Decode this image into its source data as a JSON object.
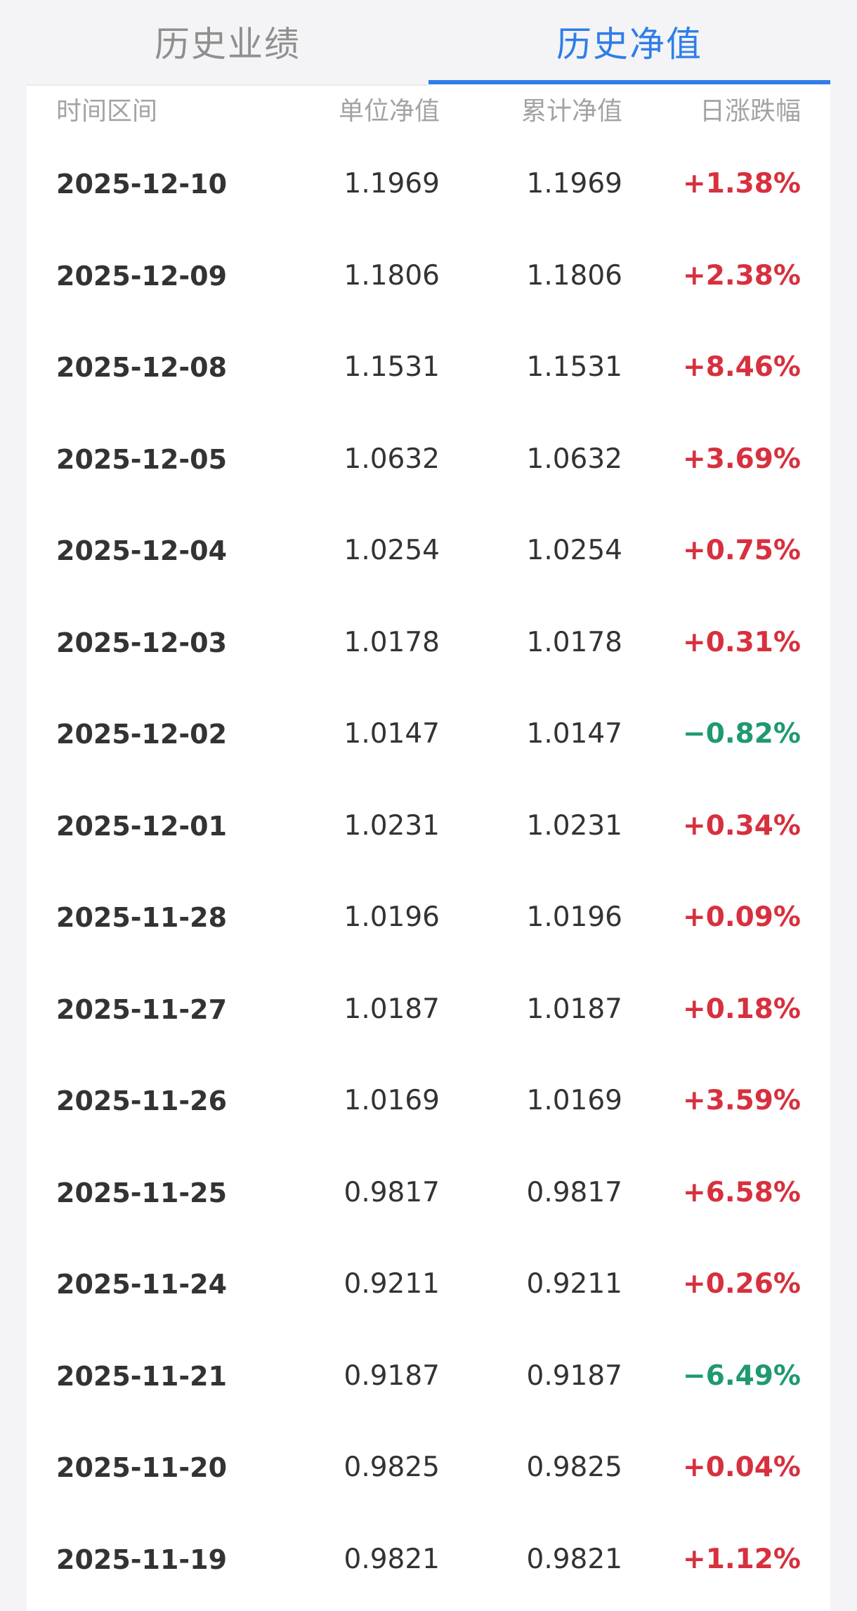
{
  "tabs": [
    {
      "label": "历史业绩",
      "active": false
    },
    {
      "label": "历史净值",
      "active": true
    }
  ],
  "colors": {
    "accent": "#2e7ee8",
    "up": "#d7303e",
    "down": "#1f9a6e",
    "inactive_tab": "#8f8f8f",
    "header_text": "#a3a3a3"
  },
  "table": {
    "headers": {
      "date": "时间区间",
      "unit_nav": "单位净值",
      "cum_nav": "累计净值",
      "daily_change": "日涨跌幅"
    },
    "rows": [
      {
        "date": "2025-12-10",
        "unit_nav": "1.1969",
        "cum_nav": "1.1969",
        "change": "+1.38%",
        "dir": "up"
      },
      {
        "date": "2025-12-09",
        "unit_nav": "1.1806",
        "cum_nav": "1.1806",
        "change": "+2.38%",
        "dir": "up"
      },
      {
        "date": "2025-12-08",
        "unit_nav": "1.1531",
        "cum_nav": "1.1531",
        "change": "+8.46%",
        "dir": "up"
      },
      {
        "date": "2025-12-05",
        "unit_nav": "1.0632",
        "cum_nav": "1.0632",
        "change": "+3.69%",
        "dir": "up"
      },
      {
        "date": "2025-12-04",
        "unit_nav": "1.0254",
        "cum_nav": "1.0254",
        "change": "+0.75%",
        "dir": "up"
      },
      {
        "date": "2025-12-03",
        "unit_nav": "1.0178",
        "cum_nav": "1.0178",
        "change": "+0.31%",
        "dir": "up"
      },
      {
        "date": "2025-12-02",
        "unit_nav": "1.0147",
        "cum_nav": "1.0147",
        "change": "−0.82%",
        "dir": "down"
      },
      {
        "date": "2025-12-01",
        "unit_nav": "1.0231",
        "cum_nav": "1.0231",
        "change": "+0.34%",
        "dir": "up"
      },
      {
        "date": "2025-11-28",
        "unit_nav": "1.0196",
        "cum_nav": "1.0196",
        "change": "+0.09%",
        "dir": "up"
      },
      {
        "date": "2025-11-27",
        "unit_nav": "1.0187",
        "cum_nav": "1.0187",
        "change": "+0.18%",
        "dir": "up"
      },
      {
        "date": "2025-11-26",
        "unit_nav": "1.0169",
        "cum_nav": "1.0169",
        "change": "+3.59%",
        "dir": "up"
      },
      {
        "date": "2025-11-25",
        "unit_nav": "0.9817",
        "cum_nav": "0.9817",
        "change": "+6.58%",
        "dir": "up"
      },
      {
        "date": "2025-11-24",
        "unit_nav": "0.9211",
        "cum_nav": "0.9211",
        "change": "+0.26%",
        "dir": "up"
      },
      {
        "date": "2025-11-21",
        "unit_nav": "0.9187",
        "cum_nav": "0.9187",
        "change": "−6.49%",
        "dir": "down"
      },
      {
        "date": "2025-11-20",
        "unit_nav": "0.9825",
        "cum_nav": "0.9825",
        "change": "+0.04%",
        "dir": "up"
      },
      {
        "date": "2025-11-19",
        "unit_nav": "0.9821",
        "cum_nav": "0.9821",
        "change": "+1.12%",
        "dir": "up"
      }
    ]
  }
}
